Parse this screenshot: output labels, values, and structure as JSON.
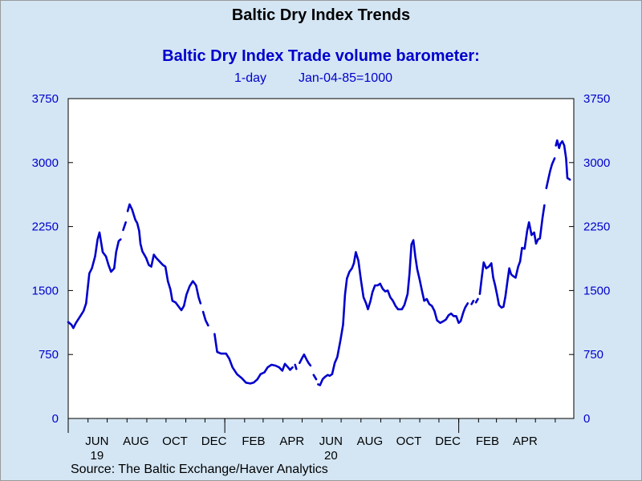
{
  "header": {
    "title": "Baltic Dry Index Trends",
    "subtitle": "Baltic Dry Index Trade volume barometer:",
    "frequency": "1-day",
    "base": "Jan-04-85=1000"
  },
  "footer": {
    "source": "Source:  The Baltic Exchange/Haver Analytics"
  },
  "chart_data": {
    "type": "line",
    "title": "Baltic Dry Index Trade volume barometer:",
    "xlabel": "",
    "ylabel": "",
    "ylim": [
      0,
      3750
    ],
    "yticks": [
      0,
      750,
      1500,
      2250,
      3000,
      3750
    ],
    "ytick_labels": [
      "0",
      "750",
      "1500",
      "2250",
      "3000",
      "3750"
    ],
    "grid": false,
    "legend": "none",
    "colors": {
      "line": "#0000cc",
      "plot_bg": "#ffffff",
      "page_bg": "#d4e6f4",
      "axis_text": "#0000cc"
    },
    "x_range": [
      "2019-05-01",
      "2021-05-31"
    ],
    "x_month_labels": [
      {
        "date": "2019-06-15",
        "label": "JUN",
        "year": "19"
      },
      {
        "date": "2019-08-15",
        "label": "AUG"
      },
      {
        "date": "2019-10-15",
        "label": "OCT"
      },
      {
        "date": "2019-12-15",
        "label": "DEC"
      },
      {
        "date": "2020-02-15",
        "label": "FEB"
      },
      {
        "date": "2020-04-15",
        "label": "APR"
      },
      {
        "date": "2020-06-15",
        "label": "JUN",
        "year": "20"
      },
      {
        "date": "2020-08-15",
        "label": "AUG"
      },
      {
        "date": "2020-10-15",
        "label": "OCT"
      },
      {
        "date": "2020-12-15",
        "label": "DEC"
      },
      {
        "date": "2021-02-15",
        "label": "FEB"
      },
      {
        "date": "2021-04-15",
        "label": "APR"
      }
    ],
    "x_year_ticks": [
      "2019-05-01",
      "2020-01-01",
      "2021-01-01"
    ],
    "series": [
      {
        "segments": [
          [
            [
              "2019-05-01",
              1130
            ],
            [
              "2019-05-06",
              1100
            ],
            [
              "2019-05-09",
              1060
            ],
            [
              "2019-05-13",
              1120
            ],
            [
              "2019-05-20",
              1200
            ],
            [
              "2019-05-25",
              1260
            ],
            [
              "2019-05-29",
              1350
            ],
            [
              "2019-06-03",
              1700
            ],
            [
              "2019-06-07",
              1760
            ],
            [
              "2019-06-12",
              1900
            ],
            [
              "2019-06-16",
              2100
            ],
            [
              "2019-06-19",
              2180
            ],
            [
              "2019-06-24",
              1950
            ],
            [
              "2019-06-29",
              1900
            ],
            [
              "2019-07-03",
              1800
            ],
            [
              "2019-07-07",
              1720
            ],
            [
              "2019-07-12",
              1760
            ],
            [
              "2019-07-15",
              1950
            ],
            [
              "2019-07-19",
              2080
            ],
            [
              "2019-07-22",
              2100
            ]
          ],
          [
            [
              "2019-07-26",
              2210
            ],
            [
              "2019-07-30",
              2300
            ]
          ],
          [
            [
              "2019-08-02",
              2430
            ],
            [
              "2019-08-05",
              2510
            ],
            [
              "2019-08-09",
              2450
            ],
            [
              "2019-08-14",
              2330
            ],
            [
              "2019-08-17",
              2290
            ],
            [
              "2019-08-20",
              2200
            ],
            [
              "2019-08-22",
              2050
            ],
            [
              "2019-08-25",
              1960
            ],
            [
              "2019-08-28",
              1920
            ],
            [
              "2019-08-31",
              1880
            ],
            [
              "2019-09-04",
              1800
            ],
            [
              "2019-09-08",
              1780
            ],
            [
              "2019-09-12",
              1920
            ],
            [
              "2019-09-16",
              1880
            ],
            [
              "2019-09-21",
              1840
            ],
            [
              "2019-09-26",
              1800
            ],
            [
              "2019-09-30",
              1780
            ],
            [
              "2019-10-04",
              1610
            ],
            [
              "2019-10-08",
              1510
            ],
            [
              "2019-10-11",
              1380
            ],
            [
              "2019-10-16",
              1360
            ],
            [
              "2019-10-20",
              1320
            ],
            [
              "2019-10-25",
              1270
            ],
            [
              "2019-10-29",
              1320
            ],
            [
              "2019-11-02",
              1450
            ],
            [
              "2019-11-07",
              1550
            ],
            [
              "2019-11-12",
              1610
            ],
            [
              "2019-11-17",
              1560
            ],
            [
              "2019-11-21",
              1420
            ],
            [
              "2019-11-24",
              1350
            ]
          ],
          [
            [
              "2019-11-28",
              1250
            ],
            [
              "2019-12-02",
              1150
            ],
            [
              "2019-12-06",
              1090
            ]
          ],
          [
            [
              "2019-12-16",
              990
            ],
            [
              "2019-12-20",
              780
            ],
            [
              "2019-12-26",
              760
            ],
            [
              "2020-01-03",
              760
            ],
            [
              "2020-01-08",
              700
            ],
            [
              "2020-01-13",
              600
            ],
            [
              "2020-01-20",
              520
            ],
            [
              "2020-01-28",
              470
            ],
            [
              "2020-02-03",
              420
            ],
            [
              "2020-02-10",
              410
            ],
            [
              "2020-02-15",
              420
            ],
            [
              "2020-02-21",
              460
            ],
            [
              "2020-02-26",
              520
            ],
            [
              "2020-03-03",
              540
            ],
            [
              "2020-03-08",
              600
            ],
            [
              "2020-03-14",
              630
            ],
            [
              "2020-03-20",
              620
            ],
            [
              "2020-03-26",
              600
            ],
            [
              "2020-03-31",
              560
            ],
            [
              "2020-04-04",
              640
            ],
            [
              "2020-04-09",
              600
            ],
            [
              "2020-04-12",
              570
            ],
            [
              "2020-04-16",
              600
            ]
          ],
          [
            [
              "2020-04-20",
              630
            ],
            [
              "2020-04-22",
              580
            ]
          ],
          [
            [
              "2020-04-27",
              650
            ],
            [
              "2020-05-01",
              710
            ],
            [
              "2020-05-04",
              750
            ],
            [
              "2020-05-08",
              690
            ],
            [
              "2020-05-11",
              650
            ],
            [
              "2020-05-14",
              620
            ]
          ],
          [
            [
              "2020-05-19",
              510
            ],
            [
              "2020-05-23",
              460
            ]
          ],
          [
            [
              "2020-05-26",
              400
            ],
            [
              "2020-05-29",
              390
            ],
            [
              "2020-06-02",
              460
            ],
            [
              "2020-06-06",
              490
            ],
            [
              "2020-06-10",
              510
            ],
            [
              "2020-06-13",
              500
            ],
            [
              "2020-06-17",
              520
            ],
            [
              "2020-06-21",
              650
            ],
            [
              "2020-06-25",
              720
            ],
            [
              "2020-06-30",
              920
            ],
            [
              "2020-07-04",
              1100
            ],
            [
              "2020-07-07",
              1450
            ],
            [
              "2020-07-10",
              1640
            ],
            [
              "2020-07-14",
              1720
            ],
            [
              "2020-07-18",
              1760
            ],
            [
              "2020-07-21",
              1820
            ],
            [
              "2020-07-24",
              1950
            ],
            [
              "2020-07-28",
              1850
            ],
            [
              "2020-08-01",
              1620
            ],
            [
              "2020-08-05",
              1420
            ],
            [
              "2020-08-09",
              1350
            ],
            [
              "2020-08-12",
              1280
            ],
            [
              "2020-08-16",
              1380
            ],
            [
              "2020-08-19",
              1480
            ],
            [
              "2020-08-23",
              1560
            ],
            [
              "2020-08-27",
              1560
            ],
            [
              "2020-08-31",
              1580
            ],
            [
              "2020-09-04",
              1520
            ],
            [
              "2020-09-08",
              1490
            ],
            [
              "2020-09-12",
              1500
            ],
            [
              "2020-09-16",
              1420
            ],
            [
              "2020-09-20",
              1380
            ],
            [
              "2020-09-24",
              1320
            ],
            [
              "2020-09-28",
              1280
            ],
            [
              "2020-10-04",
              1280
            ],
            [
              "2020-10-08",
              1330
            ],
            [
              "2020-10-13",
              1460
            ],
            [
              "2020-10-16",
              1700
            ],
            [
              "2020-10-19",
              2040
            ],
            [
              "2020-10-22",
              2090
            ],
            [
              "2020-10-25",
              1900
            ],
            [
              "2020-10-28",
              1750
            ],
            [
              "2020-11-01",
              1620
            ],
            [
              "2020-11-05",
              1480
            ],
            [
              "2020-11-08",
              1380
            ],
            [
              "2020-11-12",
              1400
            ],
            [
              "2020-11-16",
              1340
            ],
            [
              "2020-11-20",
              1320
            ],
            [
              "2020-11-24",
              1260
            ],
            [
              "2020-11-28",
              1150
            ],
            [
              "2020-12-03",
              1120
            ],
            [
              "2020-12-08",
              1140
            ],
            [
              "2020-12-12",
              1160
            ],
            [
              "2020-12-16",
              1210
            ],
            [
              "2020-12-20",
              1230
            ],
            [
              "2020-12-24",
              1200
            ],
            [
              "2020-12-28",
              1200
            ],
            [
              "2021-01-01",
              1120
            ],
            [
              "2021-01-04",
              1140
            ],
            [
              "2021-01-08",
              1240
            ],
            [
              "2021-01-11",
              1300
            ],
            [
              "2021-01-15",
              1350
            ]
          ],
          [
            [
              "2021-01-21",
              1340
            ],
            [
              "2021-01-24",
              1380
            ]
          ],
          [
            [
              "2021-01-28",
              1360
            ],
            [
              "2021-01-31",
              1400
            ]
          ],
          [
            [
              "2021-02-03",
              1460
            ],
            [
              "2021-02-06",
              1650
            ],
            [
              "2021-02-09",
              1830
            ],
            [
              "2021-02-13",
              1760
            ],
            [
              "2021-02-17",
              1780
            ],
            [
              "2021-02-21",
              1820
            ],
            [
              "2021-02-24",
              1650
            ],
            [
              "2021-02-27",
              1560
            ],
            [
              "2021-03-02",
              1450
            ],
            [
              "2021-03-05",
              1330
            ],
            [
              "2021-03-09",
              1300
            ],
            [
              "2021-03-12",
              1310
            ],
            [
              "2021-03-15",
              1430
            ],
            [
              "2021-03-18",
              1600
            ],
            [
              "2021-03-21",
              1760
            ],
            [
              "2021-03-24",
              1690
            ],
            [
              "2021-03-27",
              1670
            ],
            [
              "2021-03-31",
              1650
            ],
            [
              "2021-04-04",
              1780
            ],
            [
              "2021-04-07",
              1840
            ],
            [
              "2021-04-10",
              2000
            ],
            [
              "2021-04-14",
              1990
            ],
            [
              "2021-04-18",
              2200
            ],
            [
              "2021-04-21",
              2300
            ],
            [
              "2021-04-25",
              2150
            ],
            [
              "2021-04-29",
              2180
            ],
            [
              "2021-05-02",
              2050
            ],
            [
              "2021-05-05",
              2100
            ],
            [
              "2021-05-08",
              2110
            ],
            [
              "2021-05-12",
              2350
            ],
            [
              "2021-05-15",
              2500
            ]
          ],
          [
            [
              "2021-05-18",
              2700
            ],
            [
              "2021-05-21",
              2800
            ],
            [
              "2021-05-24",
              2900
            ],
            [
              "2021-05-27",
              2980
            ],
            [
              "2021-05-31",
              3050
            ]
          ],
          [
            [
              "2021-06-02",
              3200
            ],
            [
              "2021-06-04",
              3260
            ],
            [
              "2021-06-07",
              3170
            ],
            [
              "2021-06-09",
              3220
            ],
            [
              "2021-06-12",
              3250
            ],
            [
              "2021-06-15",
              3200
            ],
            [
              "2021-06-18",
              3050
            ],
            [
              "2021-06-20",
              2820
            ],
            [
              "2021-06-24",
              2800
            ]
          ]
        ]
      }
    ]
  }
}
